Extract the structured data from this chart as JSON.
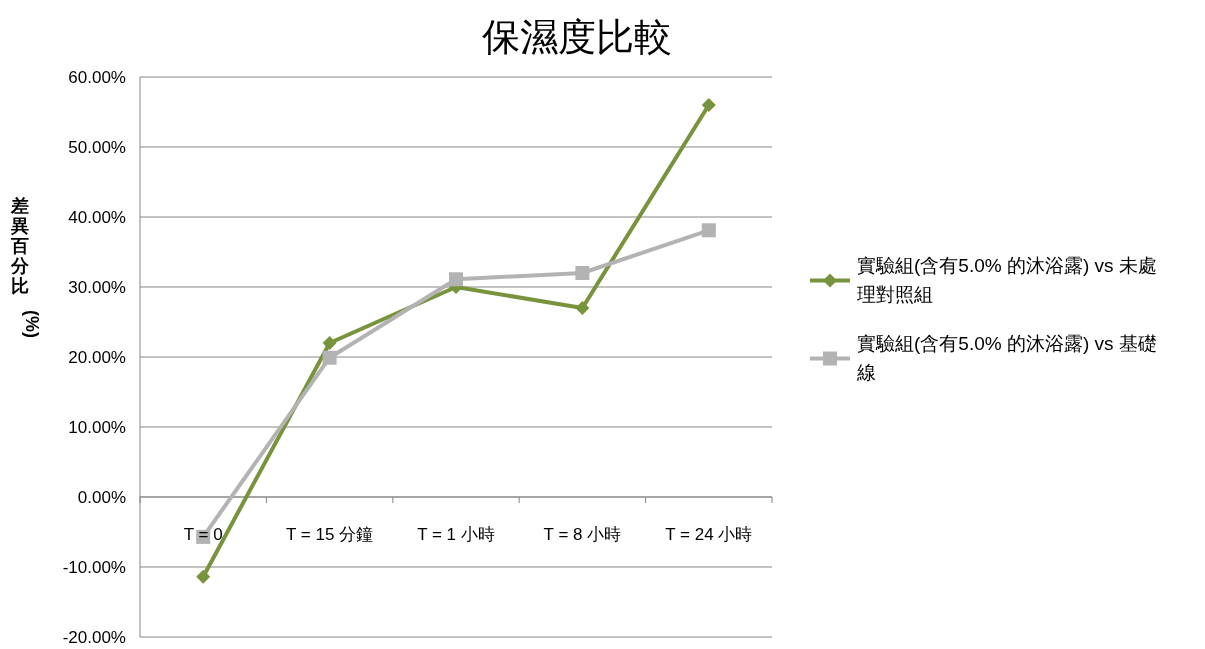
{
  "chart_data": {
    "type": "line",
    "title": "保濕度比較",
    "ylabel": "差異百分比 (%)",
    "categories": [
      "T = 0",
      "T = 15 分鐘",
      "T = 1 小時",
      "T = 8 小時",
      "T = 24 小時"
    ],
    "series": [
      {
        "name": "實驗組(含有5.0% 的沐浴露) vs 未處理對照組",
        "color": "#77933c",
        "marker": "diamond",
        "values": [
          -11.4,
          22,
          30,
          27,
          56
        ]
      },
      {
        "name": "實驗組(含有5.0% 的沐浴露) vs 基礎線",
        "color": "#b3b3b3",
        "marker": "square",
        "values": [
          -5.7,
          19.9,
          31.1,
          32,
          38.1
        ]
      }
    ],
    "ylim": [
      -20,
      60
    ],
    "yticks": [
      {
        "value": -20,
        "label": "-20.00%"
      },
      {
        "value": -10,
        "label": "-10.00%"
      },
      {
        "value": 0,
        "label": "0.00%"
      },
      {
        "value": 10,
        "label": "10.00%"
      },
      {
        "value": 20,
        "label": "20.00%"
      },
      {
        "value": 30,
        "label": "30.00%"
      },
      {
        "value": 40,
        "label": "40.00%"
      },
      {
        "value": 50,
        "label": "50.00%"
      },
      {
        "value": 60,
        "label": "60.00%"
      }
    ],
    "grid": "y",
    "legend": "right",
    "line_style": "solid"
  }
}
